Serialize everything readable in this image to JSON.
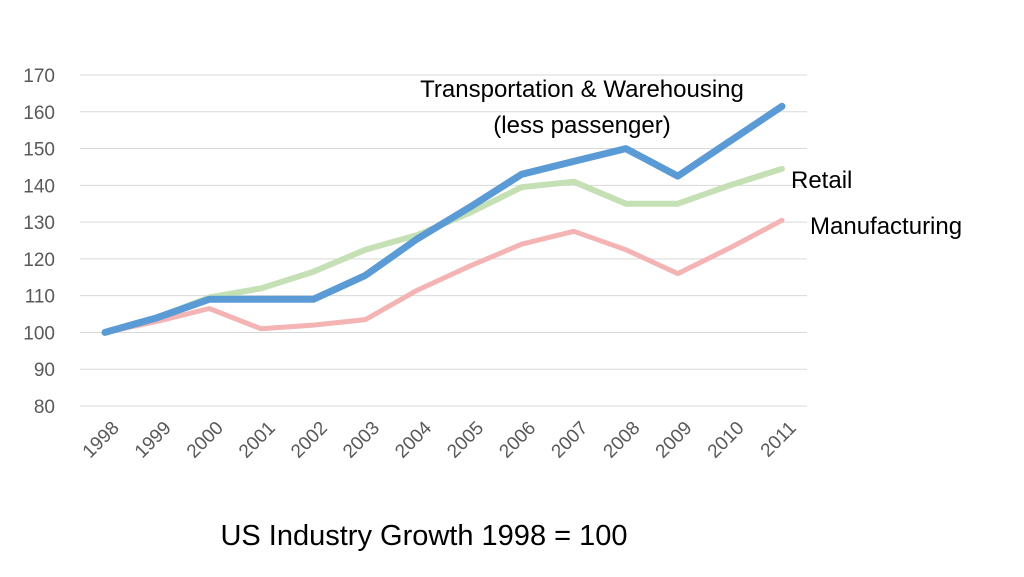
{
  "chart_data": {
    "type": "line",
    "title": "US Industry Growth 1998 = 100",
    "xlabel": "",
    "ylabel": "",
    "categories": [
      "1998",
      "1999",
      "2000",
      "2001",
      "2002",
      "2003",
      "2004",
      "2005",
      "2006",
      "2007",
      "2008",
      "2009",
      "2010",
      "2011"
    ],
    "ylim": [
      80,
      170
    ],
    "yticks": [
      80,
      90,
      100,
      110,
      120,
      130,
      140,
      150,
      160,
      170
    ],
    "grid": true,
    "legend": "none",
    "series": [
      {
        "name": "Transportation & Warehousing (less passenger)",
        "label_lines": [
          "Transportation & Warehousing",
          "(less passenger)"
        ],
        "color": "#5B9BD5",
        "values": [
          100,
          104,
          109,
          109,
          109,
          115.5,
          125.5,
          134,
          143,
          146.5,
          150,
          142.5,
          152,
          161.5
        ]
      },
      {
        "name": "Retail",
        "label_lines": [
          "Retail"
        ],
        "color": "#C5E0B4",
        "values": [
          100,
          104,
          109.5,
          112,
          116.5,
          122.5,
          126.5,
          132.5,
          139.5,
          141,
          135,
          135,
          140,
          144.5
        ]
      },
      {
        "name": "Manufacturing",
        "label_lines": [
          "Manufacturing"
        ],
        "color": "#F4B4B4",
        "values": [
          100,
          103,
          106.5,
          101,
          102,
          103.5,
          111.5,
          118,
          124,
          127.5,
          122.5,
          116,
          123,
          130.5
        ]
      }
    ]
  }
}
